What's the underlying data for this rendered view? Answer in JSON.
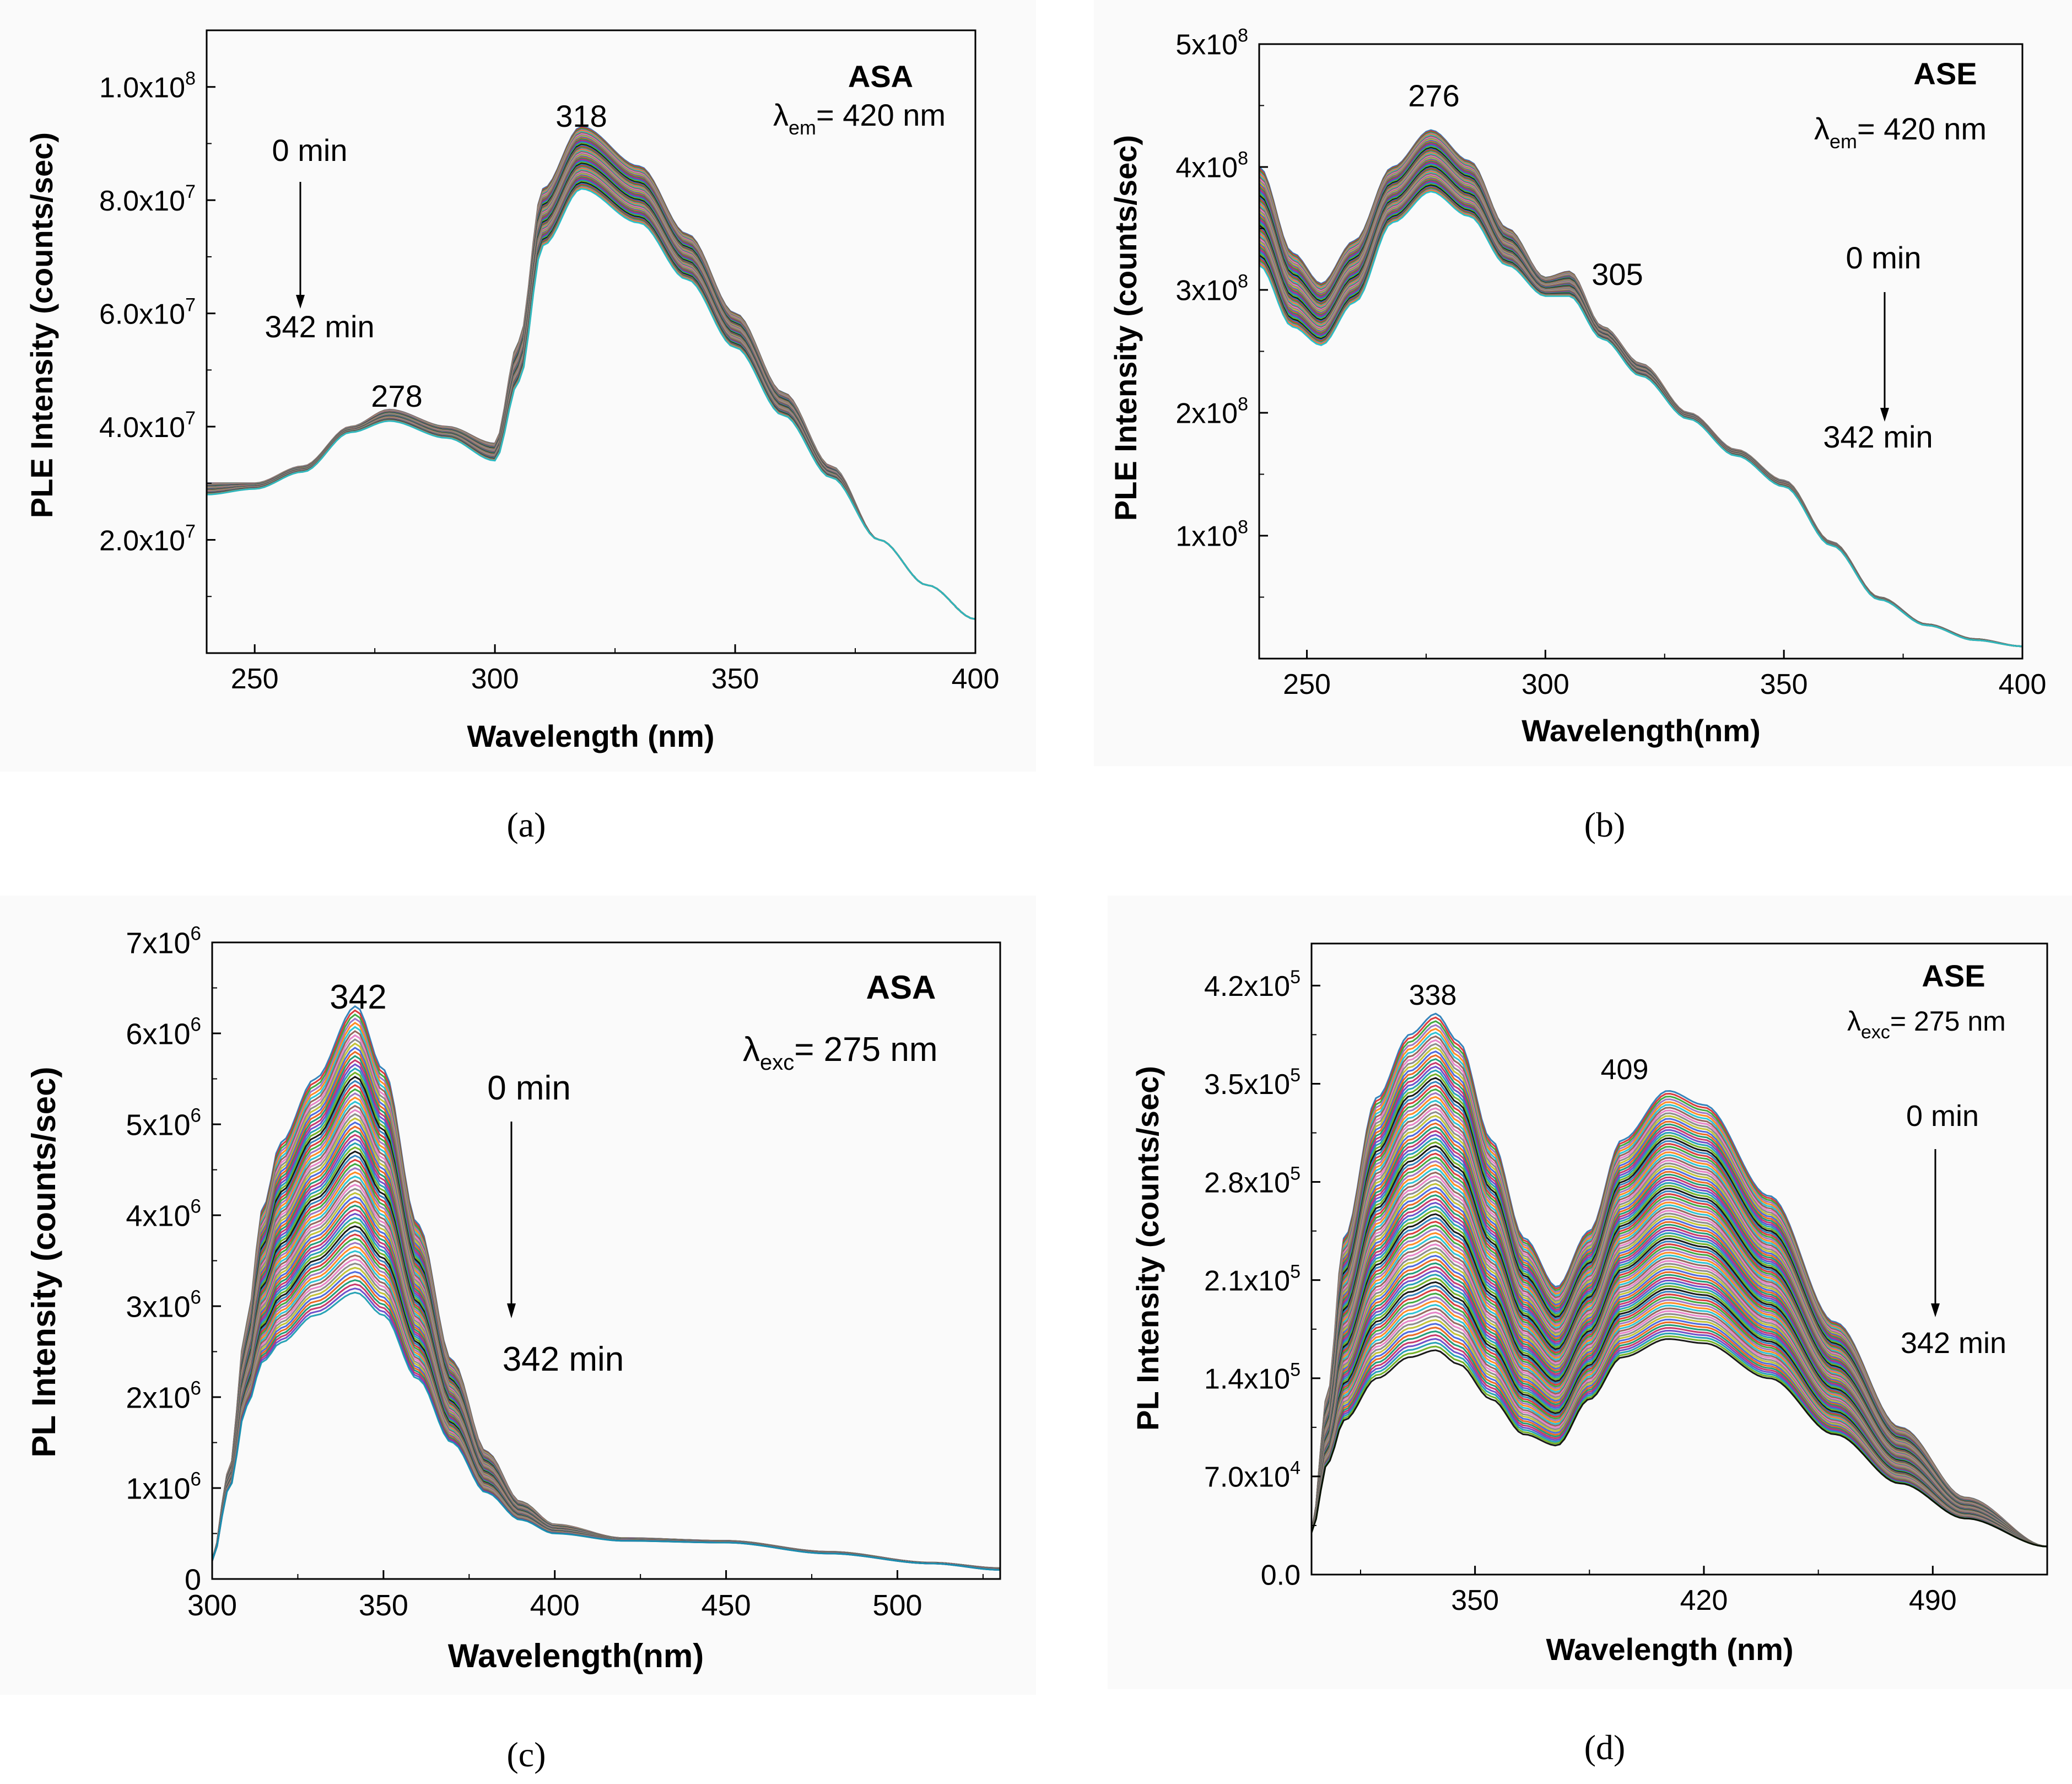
{
  "figure": {
    "panels": [
      {
        "id": "a",
        "caption": "(a)",
        "sample_label": "ASA",
        "lambda_symbol": "λ",
        "lambda_sub": "em",
        "lambda_value": "= 420 nm",
        "time_start": "0 min",
        "time_end": "342 min",
        "peak_labels": [
          "278",
          "318"
        ]
      },
      {
        "id": "b",
        "caption": "(b)",
        "sample_label": "ASE",
        "lambda_symbol": "λ",
        "lambda_sub": "em",
        "lambda_value": "= 420 nm",
        "time_start": "0 min",
        "time_end": "342 min",
        "peak_labels": [
          "276",
          "305"
        ]
      },
      {
        "id": "c",
        "caption": "(c)",
        "sample_label": "ASA",
        "lambda_symbol": "λ",
        "lambda_sub": "exc",
        "lambda_value": "= 275 nm",
        "time_start": "0 min",
        "time_end": "342 min",
        "peak_labels": [
          "342"
        ]
      },
      {
        "id": "d",
        "caption": "(d)",
        "sample_label": "ASE",
        "lambda_symbol": "λ",
        "lambda_sub": "exc",
        "lambda_value": "= 275 nm",
        "time_start": "0 min",
        "time_end": "342 min",
        "peak_labels": [
          "338",
          "409"
        ]
      }
    ]
  },
  "chart_data": [
    {
      "type": "line",
      "title": "",
      "xlabel": "Wavelength (nm)",
      "ylabel": "PLE Intensity (counts/sec)",
      "xlim": [
        240,
        400
      ],
      "ylim": [
        0,
        110000000.0
      ],
      "xticks": [
        250,
        300,
        350,
        400
      ],
      "xtick_labels": [
        "250",
        "300",
        "350",
        "400"
      ],
      "yticks": [
        20000000.0,
        40000000.0,
        60000000.0,
        80000000.0,
        100000000.0
      ],
      "ytick_mantissas": [
        "2.0x10",
        "4.0x10",
        "6.0x10",
        "8.0x10",
        "1.0x10"
      ],
      "ytick_exponents": [
        "7",
        "7",
        "7",
        "7",
        "8"
      ],
      "n_curves": 60,
      "series": [
        {
          "name": "0 min",
          "x": [
            240,
            250,
            260,
            270,
            278,
            290,
            300,
            305,
            310,
            318,
            330,
            340,
            350,
            360,
            370,
            380,
            390,
            400
          ],
          "y": [
            30000000.0,
            30000000.0,
            33000000.0,
            40000000.0,
            43000000.0,
            40000000.0,
            37000000.0,
            55000000.0,
            82000000.0,
            93000000.0,
            86000000.0,
            74000000.0,
            60000000.0,
            46000000.0,
            33000000.0,
            20000000.0,
            12000000.0,
            6000000.0
          ]
        },
        {
          "name": "342 min",
          "x": [
            240,
            250,
            260,
            270,
            278,
            290,
            300,
            305,
            310,
            318,
            330,
            340,
            350,
            360,
            370,
            380,
            390,
            400
          ],
          "y": [
            28000000.0,
            29000000.0,
            32000000.0,
            39000000.0,
            41000000.0,
            38000000.0,
            34000000.0,
            48000000.0,
            72000000.0,
            82000000.0,
            76000000.0,
            66000000.0,
            54000000.0,
            42000000.0,
            31000000.0,
            20000000.0,
            12000000.0,
            6000000.0
          ]
        }
      ]
    },
    {
      "type": "line",
      "title": "",
      "xlabel": "Wavelength(nm)",
      "ylabel": "PLE Intensity (counts/sec)",
      "xlim": [
        240,
        400
      ],
      "ylim": [
        0,
        500000000.0
      ],
      "xticks": [
        250,
        300,
        350,
        400
      ],
      "xtick_labels": [
        "250",
        "300",
        "350",
        "400"
      ],
      "yticks": [
        100000000.0,
        200000000.0,
        300000000.0,
        400000000.0,
        500000000.0
      ],
      "ytick_mantissas": [
        "1x10",
        "2x10",
        "3x10",
        "4x10",
        "5x10"
      ],
      "ytick_exponents": [
        "8",
        "8",
        "8",
        "8",
        "8"
      ],
      "n_curves": 60,
      "series": [
        {
          "name": "0 min",
          "x": [
            240,
            247,
            253,
            260,
            268,
            276,
            284,
            292,
            300,
            305,
            312,
            320,
            330,
            340,
            350,
            360,
            370,
            380,
            390,
            400
          ],
          "y": [
            400000000.0,
            330000000.0,
            305000000.0,
            340000000.0,
            400000000.0,
            430000000.0,
            405000000.0,
            350000000.0,
            310000000.0,
            315000000.0,
            270000000.0,
            240000000.0,
            200000000.0,
            170000000.0,
            145000000.0,
            95000000.0,
            50000000.0,
            28000000.0,
            16000000.0,
            10000000.0
          ]
        },
        {
          "name": "342 min",
          "x": [
            240,
            247,
            253,
            260,
            268,
            276,
            284,
            292,
            300,
            305,
            312,
            320,
            330,
            340,
            350,
            360,
            370,
            380,
            390,
            400
          ],
          "y": [
            320000000.0,
            270000000.0,
            255000000.0,
            290000000.0,
            355000000.0,
            380000000.0,
            360000000.0,
            320000000.0,
            295000000.0,
            295000000.0,
            260000000.0,
            230000000.0,
            195000000.0,
            165000000.0,
            140000000.0,
            92000000.0,
            48000000.0,
            27000000.0,
            15000000.0,
            10000000.0
          ]
        }
      ]
    },
    {
      "type": "line",
      "title": "",
      "xlabel": "Wavelength(nm)",
      "ylabel": "PL Intensity (counts/sec)",
      "xlim": [
        300,
        530
      ],
      "ylim": [
        0,
        7000000.0
      ],
      "xticks": [
        300,
        350,
        400,
        450,
        500
      ],
      "xtick_labels": [
        "300",
        "350",
        "400",
        "450",
        "500"
      ],
      "yticks": [
        0,
        1000000.0,
        2000000.0,
        3000000.0,
        4000000.0,
        5000000.0,
        6000000.0,
        7000000.0
      ],
      "ytick_mantissas": [
        "0",
        "1x10",
        "2x10",
        "3x10",
        "4x10",
        "5x10",
        "6x10",
        "7x10"
      ],
      "ytick_exponents": [
        "",
        "6",
        "6",
        "6",
        "6",
        "6",
        "6",
        "6"
      ],
      "n_curves": 70,
      "series": [
        {
          "name": "0 min",
          "x": [
            300,
            305,
            310,
            315,
            320,
            330,
            342,
            350,
            360,
            370,
            380,
            390,
            400,
            420,
            450,
            480,
            510,
            530
          ],
          "y": [
            200000.0,
            1200000.0,
            2800000.0,
            4100000.0,
            4800000.0,
            5500000.0,
            6300000.0,
            5600000.0,
            3900000.0,
            2400000.0,
            1400000.0,
            850000.0,
            600000.0,
            450000.0,
            420000.0,
            300000.0,
            180000.0,
            120000.0
          ]
        },
        {
          "name": "342 min",
          "x": [
            300,
            305,
            310,
            315,
            320,
            330,
            342,
            350,
            360,
            370,
            380,
            390,
            400,
            420,
            450,
            480,
            510,
            530
          ],
          "y": [
            200000.0,
            1000000.0,
            1900000.0,
            2400000.0,
            2600000.0,
            2900000.0,
            3150000.0,
            2900000.0,
            2200000.0,
            1500000.0,
            950000.0,
            650000.0,
            500000.0,
            420000.0,
            400000.0,
            280000.0,
            170000.0,
            100000.0
          ]
        }
      ]
    },
    {
      "type": "line",
      "title": "",
      "xlabel": "Wavelength (nm)",
      "ylabel": "PL Intensity (counts/sec)",
      "xlim": [
        300,
        525
      ],
      "ylim": [
        0,
        450000.0
      ],
      "xticks": [
        350,
        420,
        490
      ],
      "xtick_labels": [
        "350",
        "420",
        "490"
      ],
      "yticks": [
        0,
        70000.0,
        140000.0,
        210000.0,
        280000.0,
        350000.0,
        420000.0
      ],
      "ytick_mantissas": [
        "0.0",
        "7.0x10",
        "1.4x10",
        "2.1x10",
        "2.8x10",
        "3.5x10",
        "4.2x10"
      ],
      "ytick_exponents": [
        "",
        "4",
        "5",
        "5",
        "5",
        "5",
        "5"
      ],
      "n_curves": 90,
      "series": [
        {
          "name": "0 min",
          "x": [
            300,
            305,
            310,
            320,
            330,
            338,
            345,
            355,
            365,
            375,
            385,
            395,
            409,
            420,
            440,
            460,
            480,
            500,
            525
          ],
          "y": [
            30000.0,
            130000.0,
            240000.0,
            340000.0,
            385000.0,
            400000.0,
            380000.0,
            310000.0,
            240000.0,
            205000.0,
            245000.0,
            310000.0,
            345000.0,
            335000.0,
            270000.0,
            180000.0,
            105000.0,
            55000.0,
            20000.0
          ]
        },
        {
          "name": "342 min",
          "x": [
            300,
            305,
            310,
            320,
            330,
            338,
            345,
            355,
            365,
            375,
            385,
            395,
            409,
            420,
            440,
            460,
            480,
            500,
            525
          ],
          "y": [
            30000.0,
            80000.0,
            110000.0,
            140000.0,
            155000.0,
            160000.0,
            150000.0,
            125000.0,
            100000.0,
            92000.0,
            125000.0,
            155000.0,
            168000.0,
            165000.0,
            140000.0,
            100000.0,
            65000.0,
            40000.0,
            20000.0
          ]
        }
      ]
    }
  ]
}
